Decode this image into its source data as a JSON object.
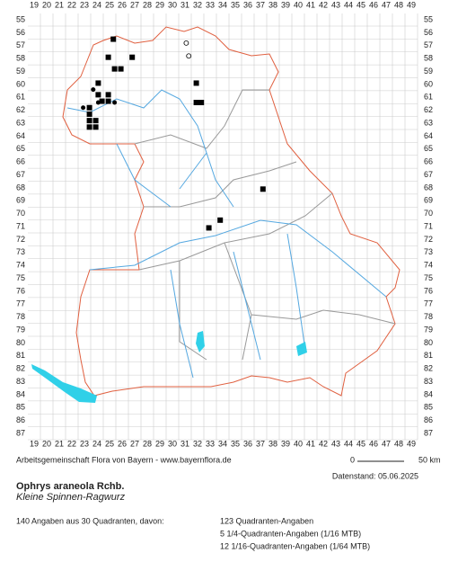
{
  "grid": {
    "columns": [
      19,
      20,
      21,
      22,
      23,
      24,
      25,
      26,
      27,
      28,
      29,
      30,
      31,
      32,
      33,
      34,
      35,
      36,
      37,
      38,
      39,
      40,
      41,
      42,
      43,
      44,
      45,
      46,
      47,
      48,
      49
    ],
    "rows": [
      55,
      56,
      57,
      58,
      59,
      60,
      61,
      62,
      63,
      64,
      65,
      66,
      67,
      68,
      69,
      70,
      71,
      72,
      73,
      74,
      75,
      76,
      77,
      78,
      79,
      80,
      81,
      82,
      83,
      84,
      85,
      86,
      87
    ]
  },
  "records": [
    {
      "col": 25.3,
      "row": 56.5,
      "symbol": "square"
    },
    {
      "col": 24.9,
      "row": 57.9,
      "symbol": "square"
    },
    {
      "col": 26.8,
      "row": 57.9,
      "symbol": "square"
    },
    {
      "col": 25.4,
      "row": 58.8,
      "symbol": "square"
    },
    {
      "col": 25.9,
      "row": 58.8,
      "symbol": "square"
    },
    {
      "col": 24.1,
      "row": 59.9,
      "symbol": "square"
    },
    {
      "col": 31.9,
      "row": 59.9,
      "symbol": "square"
    },
    {
      "col": 24.1,
      "row": 60.8,
      "symbol": "square"
    },
    {
      "col": 24.9,
      "row": 60.8,
      "symbol": "square"
    },
    {
      "col": 24.4,
      "row": 61.3,
      "symbol": "square"
    },
    {
      "col": 24.9,
      "row": 61.3,
      "symbol": "square"
    },
    {
      "col": 31.9,
      "row": 61.4,
      "symbol": "square"
    },
    {
      "col": 32.3,
      "row": 61.4,
      "symbol": "square"
    },
    {
      "col": 23.4,
      "row": 61.8,
      "symbol": "square"
    },
    {
      "col": 23.4,
      "row": 62.3,
      "symbol": "square"
    },
    {
      "col": 23.4,
      "row": 62.8,
      "symbol": "square"
    },
    {
      "col": 23.9,
      "row": 62.8,
      "symbol": "square"
    },
    {
      "col": 23.4,
      "row": 63.3,
      "symbol": "square"
    },
    {
      "col": 23.9,
      "row": 63.3,
      "symbol": "square"
    },
    {
      "col": 37.2,
      "row": 68.1,
      "symbol": "square"
    },
    {
      "col": 33.8,
      "row": 70.5,
      "symbol": "square"
    },
    {
      "col": 32.9,
      "row": 71.1,
      "symbol": "square"
    },
    {
      "col": 23.7,
      "row": 60.4,
      "symbol": "circle"
    },
    {
      "col": 24.1,
      "row": 61.4,
      "symbol": "circle"
    },
    {
      "col": 25.4,
      "row": 61.4,
      "symbol": "circle"
    },
    {
      "col": 22.9,
      "row": 61.8,
      "symbol": "circle"
    },
    {
      "col": 31.1,
      "row": 56.8,
      "symbol": "open-circle"
    },
    {
      "col": 31.3,
      "row": 57.8,
      "symbol": "open-circle"
    }
  ],
  "credit": "Arbeitsgemeinschaft Flora von Bayern - www.bayernflora.de",
  "scale": {
    "start": "0",
    "end": "50 km"
  },
  "date": "Datenstand: 05.06.2025",
  "species": {
    "name": "Ophrys araneola Rchb.",
    "common_name": "Kleine Spinnen-Ragwurz"
  },
  "summary": {
    "total": "140 Angaben aus 30 Quadranten, davon:",
    "breakdown": [
      "123 Quadranten-Angaben",
      "5 1/4-Quadranten-Angaben (1/16 MTB)",
      "12 1/16-Quadranten-Angaben (1/64 MTB)"
    ]
  }
}
